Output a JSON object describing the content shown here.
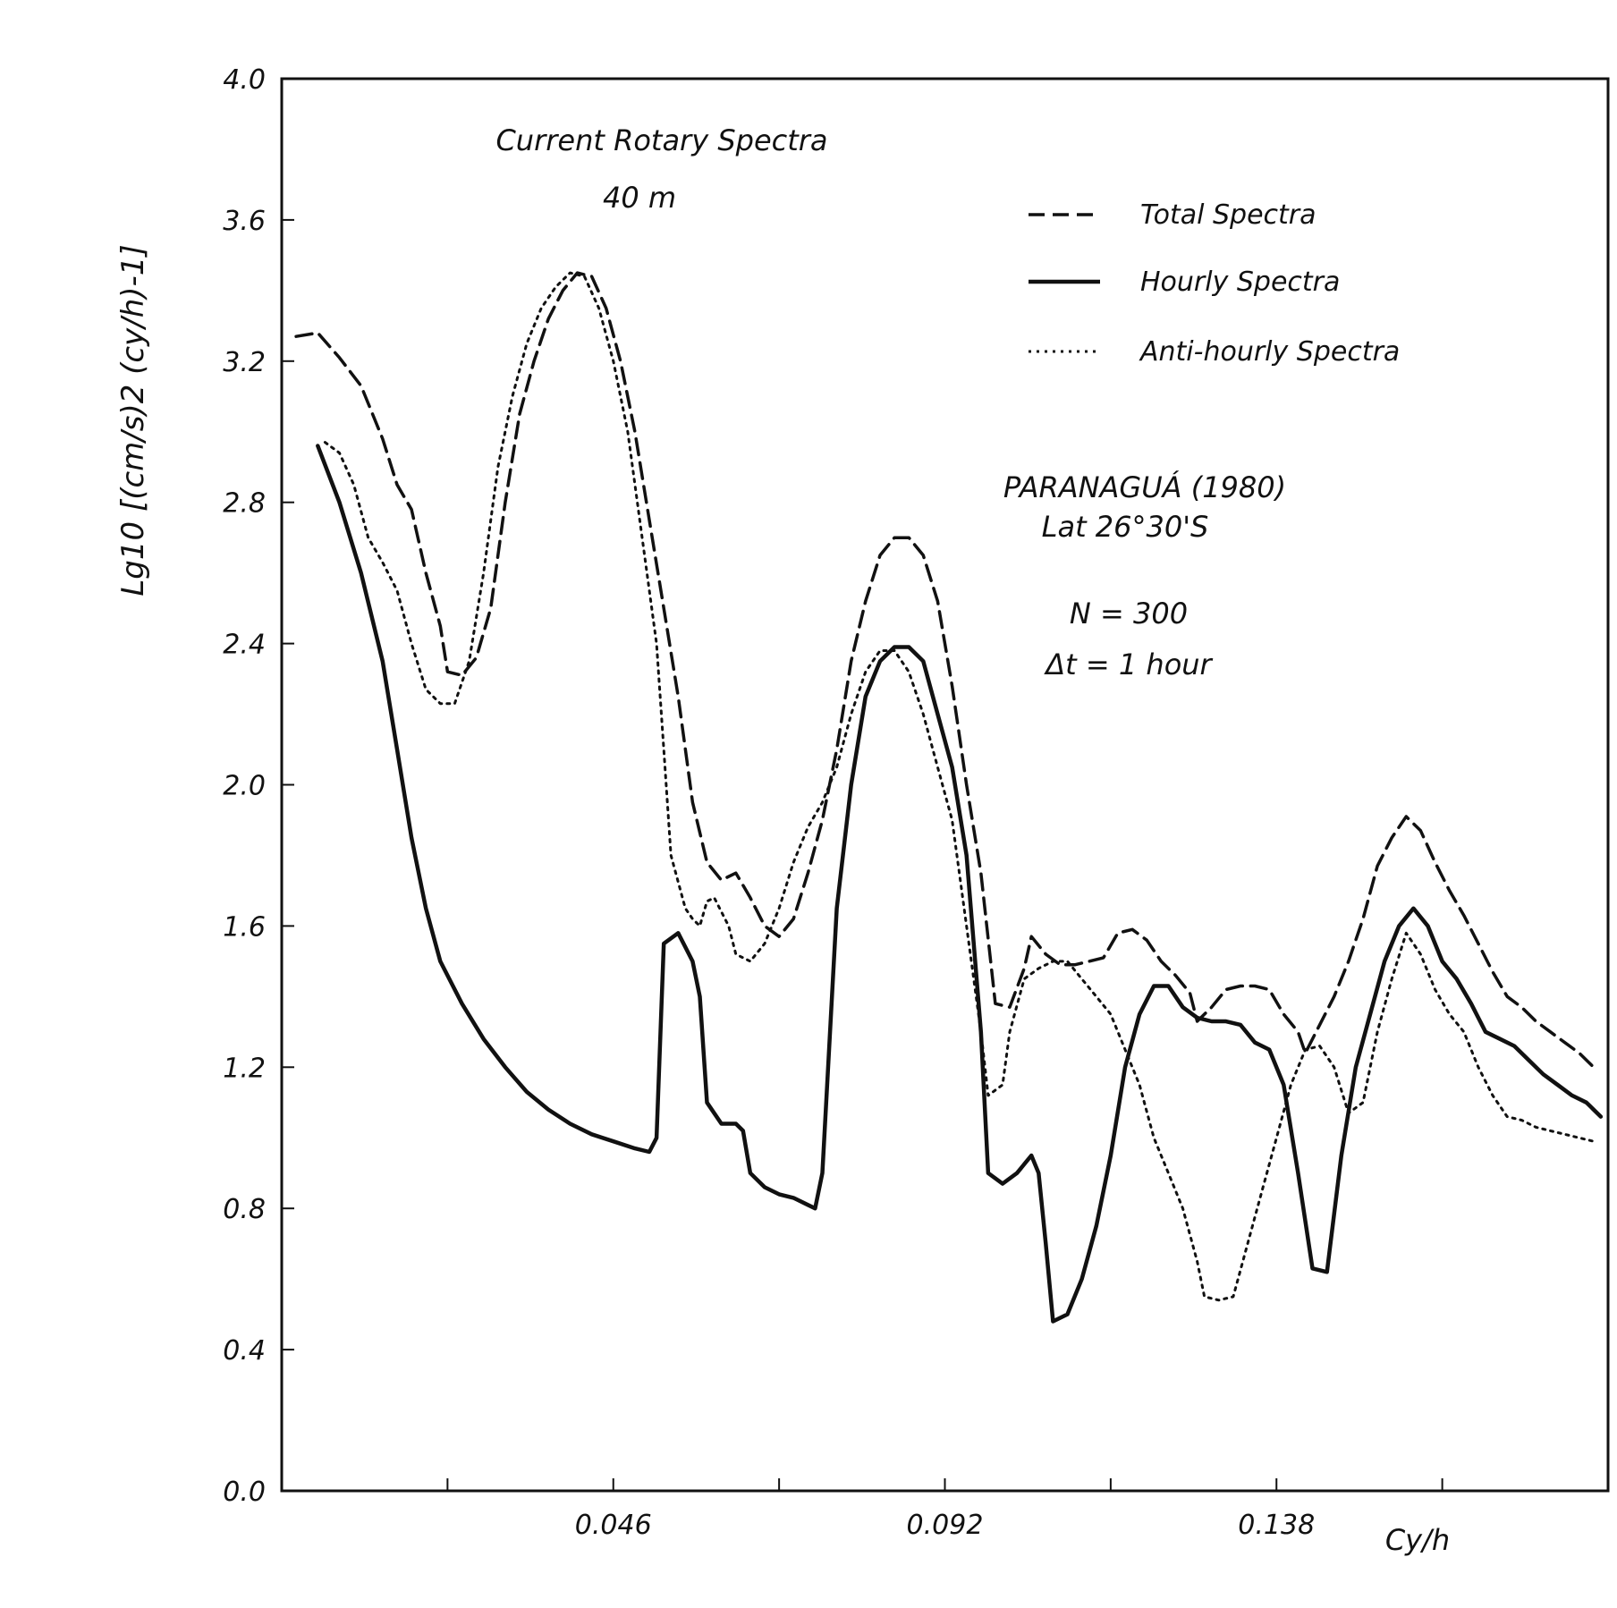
{
  "chart_data": {
    "type": "line",
    "title": "Current Rotary Spectra",
    "subtitle": "40 m",
    "xlabel": "Cy/h",
    "ylabel": "Lg10 [(cm/s)2 (cy/h)-1]",
    "xlim": [
      0.0,
      0.184
    ],
    "ylim": [
      0.0,
      4.0
    ],
    "x_ticks": [
      0.046,
      0.092,
      0.138
    ],
    "y_ticks": [
      "0.0",
      "0.4",
      "0.8",
      "1.2",
      "1.6",
      "2.0",
      "2.4",
      "2.8",
      "3.2",
      "3.6",
      "4.0"
    ],
    "grid": false,
    "legend_position": "top-right",
    "annotations": {
      "station": "PARANAGUÁ (1980)",
      "latitude": "Lat 26°30'S",
      "n": "N = 300",
      "dt": "Δt = 1 hour"
    },
    "series": [
      {
        "name": "Total Spectra",
        "style": "dashed",
        "points": [
          [
            0.002,
            3.27
          ],
          [
            0.005,
            3.28
          ],
          [
            0.008,
            3.21
          ],
          [
            0.011,
            3.13
          ],
          [
            0.014,
            2.98
          ],
          [
            0.016,
            2.85
          ],
          [
            0.018,
            2.78
          ],
          [
            0.02,
            2.6
          ],
          [
            0.022,
            2.45
          ],
          [
            0.023,
            2.32
          ],
          [
            0.025,
            2.31
          ],
          [
            0.027,
            2.36
          ],
          [
            0.029,
            2.5
          ],
          [
            0.031,
            2.8
          ],
          [
            0.033,
            3.05
          ],
          [
            0.035,
            3.2
          ],
          [
            0.037,
            3.32
          ],
          [
            0.039,
            3.4
          ],
          [
            0.041,
            3.45
          ],
          [
            0.043,
            3.44
          ],
          [
            0.045,
            3.35
          ],
          [
            0.047,
            3.2
          ],
          [
            0.049,
            3.0
          ],
          [
            0.051,
            2.75
          ],
          [
            0.053,
            2.5
          ],
          [
            0.055,
            2.25
          ],
          [
            0.057,
            1.95
          ],
          [
            0.059,
            1.78
          ],
          [
            0.061,
            1.73
          ],
          [
            0.063,
            1.75
          ],
          [
            0.065,
            1.68
          ],
          [
            0.067,
            1.6
          ],
          [
            0.069,
            1.57
          ],
          [
            0.071,
            1.62
          ],
          [
            0.073,
            1.75
          ],
          [
            0.075,
            1.9
          ],
          [
            0.077,
            2.1
          ],
          [
            0.079,
            2.35
          ],
          [
            0.081,
            2.52
          ],
          [
            0.083,
            2.65
          ],
          [
            0.085,
            2.7
          ],
          [
            0.087,
            2.7
          ],
          [
            0.089,
            2.65
          ],
          [
            0.091,
            2.52
          ],
          [
            0.093,
            2.28
          ],
          [
            0.095,
            2.0
          ],
          [
            0.097,
            1.75
          ],
          [
            0.099,
            1.38
          ],
          [
            0.101,
            1.37
          ],
          [
            0.103,
            1.48
          ],
          [
            0.104,
            1.57
          ],
          [
            0.106,
            1.52
          ],
          [
            0.108,
            1.49
          ],
          [
            0.11,
            1.49
          ],
          [
            0.112,
            1.5
          ],
          [
            0.114,
            1.51
          ],
          [
            0.116,
            1.58
          ],
          [
            0.118,
            1.59
          ],
          [
            0.12,
            1.56
          ],
          [
            0.122,
            1.5
          ],
          [
            0.124,
            1.46
          ],
          [
            0.126,
            1.41
          ],
          [
            0.127,
            1.33
          ],
          [
            0.129,
            1.37
          ],
          [
            0.131,
            1.42
          ],
          [
            0.133,
            1.43
          ],
          [
            0.135,
            1.43
          ],
          [
            0.137,
            1.42
          ],
          [
            0.139,
            1.35
          ],
          [
            0.141,
            1.3
          ],
          [
            0.142,
            1.24
          ],
          [
            0.144,
            1.32
          ],
          [
            0.146,
            1.4
          ],
          [
            0.148,
            1.5
          ],
          [
            0.15,
            1.62
          ],
          [
            0.152,
            1.77
          ],
          [
            0.154,
            1.85
          ],
          [
            0.156,
            1.91
          ],
          [
            0.158,
            1.87
          ],
          [
            0.16,
            1.78
          ],
          [
            0.162,
            1.7
          ],
          [
            0.164,
            1.63
          ],
          [
            0.166,
            1.55
          ],
          [
            0.168,
            1.47
          ],
          [
            0.17,
            1.4
          ],
          [
            0.172,
            1.37
          ],
          [
            0.174,
            1.33
          ],
          [
            0.176,
            1.3
          ],
          [
            0.178,
            1.27
          ],
          [
            0.18,
            1.24
          ],
          [
            0.182,
            1.2
          ]
        ]
      },
      {
        "name": "Hourly Spectra",
        "style": "solid",
        "points": [
          [
            0.005,
            2.96
          ],
          [
            0.008,
            2.8
          ],
          [
            0.011,
            2.6
          ],
          [
            0.014,
            2.35
          ],
          [
            0.016,
            2.1
          ],
          [
            0.018,
            1.85
          ],
          [
            0.02,
            1.65
          ],
          [
            0.022,
            1.5
          ],
          [
            0.025,
            1.38
          ],
          [
            0.028,
            1.28
          ],
          [
            0.031,
            1.2
          ],
          [
            0.034,
            1.13
          ],
          [
            0.037,
            1.08
          ],
          [
            0.04,
            1.04
          ],
          [
            0.043,
            1.01
          ],
          [
            0.046,
            0.99
          ],
          [
            0.049,
            0.97
          ],
          [
            0.051,
            0.96
          ],
          [
            0.052,
            1.0
          ],
          [
            0.053,
            1.55
          ],
          [
            0.055,
            1.58
          ],
          [
            0.057,
            1.5
          ],
          [
            0.058,
            1.4
          ],
          [
            0.059,
            1.1
          ],
          [
            0.061,
            1.04
          ],
          [
            0.063,
            1.04
          ],
          [
            0.064,
            1.02
          ],
          [
            0.065,
            0.9
          ],
          [
            0.067,
            0.86
          ],
          [
            0.069,
            0.84
          ],
          [
            0.071,
            0.83
          ],
          [
            0.073,
            0.81
          ],
          [
            0.074,
            0.8
          ],
          [
            0.075,
            0.9
          ],
          [
            0.077,
            1.65
          ],
          [
            0.079,
            2.0
          ],
          [
            0.081,
            2.25
          ],
          [
            0.083,
            2.35
          ],
          [
            0.085,
            2.39
          ],
          [
            0.087,
            2.39
          ],
          [
            0.089,
            2.35
          ],
          [
            0.091,
            2.2
          ],
          [
            0.093,
            2.05
          ],
          [
            0.095,
            1.8
          ],
          [
            0.097,
            1.3
          ],
          [
            0.098,
            0.9
          ],
          [
            0.1,
            0.87
          ],
          [
            0.102,
            0.9
          ],
          [
            0.104,
            0.95
          ],
          [
            0.105,
            0.9
          ],
          [
            0.106,
            0.7
          ],
          [
            0.107,
            0.48
          ],
          [
            0.109,
            0.5
          ],
          [
            0.111,
            0.6
          ],
          [
            0.113,
            0.75
          ],
          [
            0.115,
            0.95
          ],
          [
            0.117,
            1.2
          ],
          [
            0.119,
            1.35
          ],
          [
            0.121,
            1.43
          ],
          [
            0.123,
            1.43
          ],
          [
            0.125,
            1.37
          ],
          [
            0.127,
            1.34
          ],
          [
            0.129,
            1.33
          ],
          [
            0.131,
            1.33
          ],
          [
            0.133,
            1.32
          ],
          [
            0.135,
            1.27
          ],
          [
            0.137,
            1.25
          ],
          [
            0.139,
            1.15
          ],
          [
            0.141,
            0.9
          ],
          [
            0.143,
            0.63
          ],
          [
            0.145,
            0.62
          ],
          [
            0.147,
            0.95
          ],
          [
            0.149,
            1.2
          ],
          [
            0.151,
            1.35
          ],
          [
            0.153,
            1.5
          ],
          [
            0.155,
            1.6
          ],
          [
            0.157,
            1.65
          ],
          [
            0.159,
            1.6
          ],
          [
            0.161,
            1.5
          ],
          [
            0.163,
            1.45
          ],
          [
            0.165,
            1.38
          ],
          [
            0.167,
            1.3
          ],
          [
            0.169,
            1.28
          ],
          [
            0.171,
            1.26
          ],
          [
            0.173,
            1.22
          ],
          [
            0.175,
            1.18
          ],
          [
            0.177,
            1.15
          ],
          [
            0.179,
            1.12
          ],
          [
            0.181,
            1.1
          ],
          [
            0.183,
            1.06
          ]
        ]
      },
      {
        "name": "Anti-hourly Spectra",
        "style": "dotted",
        "points": [
          [
            0.006,
            2.97
          ],
          [
            0.008,
            2.94
          ],
          [
            0.01,
            2.85
          ],
          [
            0.012,
            2.7
          ],
          [
            0.014,
            2.63
          ],
          [
            0.016,
            2.55
          ],
          [
            0.018,
            2.4
          ],
          [
            0.02,
            2.27
          ],
          [
            0.022,
            2.23
          ],
          [
            0.024,
            2.23
          ],
          [
            0.026,
            2.35
          ],
          [
            0.028,
            2.6
          ],
          [
            0.03,
            2.9
          ],
          [
            0.032,
            3.1
          ],
          [
            0.034,
            3.25
          ],
          [
            0.036,
            3.35
          ],
          [
            0.038,
            3.41
          ],
          [
            0.04,
            3.45
          ],
          [
            0.042,
            3.44
          ],
          [
            0.044,
            3.35
          ],
          [
            0.046,
            3.2
          ],
          [
            0.048,
            3.0
          ],
          [
            0.05,
            2.7
          ],
          [
            0.052,
            2.4
          ],
          [
            0.053,
            2.1
          ],
          [
            0.054,
            1.8
          ],
          [
            0.056,
            1.65
          ],
          [
            0.057,
            1.62
          ],
          [
            0.058,
            1.6
          ],
          [
            0.059,
            1.67
          ],
          [
            0.06,
            1.68
          ],
          [
            0.062,
            1.6
          ],
          [
            0.063,
            1.52
          ],
          [
            0.065,
            1.5
          ],
          [
            0.067,
            1.55
          ],
          [
            0.069,
            1.65
          ],
          [
            0.071,
            1.78
          ],
          [
            0.073,
            1.88
          ],
          [
            0.075,
            1.95
          ],
          [
            0.077,
            2.05
          ],
          [
            0.079,
            2.2
          ],
          [
            0.081,
            2.32
          ],
          [
            0.083,
            2.38
          ],
          [
            0.085,
            2.38
          ],
          [
            0.087,
            2.32
          ],
          [
            0.089,
            2.2
          ],
          [
            0.091,
            2.05
          ],
          [
            0.093,
            1.9
          ],
          [
            0.095,
            1.6
          ],
          [
            0.097,
            1.3
          ],
          [
            0.098,
            1.12
          ],
          [
            0.1,
            1.15
          ],
          [
            0.101,
            1.3
          ],
          [
            0.103,
            1.45
          ],
          [
            0.105,
            1.48
          ],
          [
            0.107,
            1.5
          ],
          [
            0.109,
            1.5
          ],
          [
            0.111,
            1.45
          ],
          [
            0.113,
            1.4
          ],
          [
            0.115,
            1.35
          ],
          [
            0.117,
            1.25
          ],
          [
            0.119,
            1.15
          ],
          [
            0.121,
            1.0
          ],
          [
            0.123,
            0.9
          ],
          [
            0.125,
            0.8
          ],
          [
            0.127,
            0.65
          ],
          [
            0.128,
            0.55
          ],
          [
            0.13,
            0.54
          ],
          [
            0.132,
            0.55
          ],
          [
            0.134,
            0.7
          ],
          [
            0.136,
            0.85
          ],
          [
            0.138,
            1.0
          ],
          [
            0.14,
            1.15
          ],
          [
            0.142,
            1.25
          ],
          [
            0.144,
            1.26
          ],
          [
            0.146,
            1.2
          ],
          [
            0.148,
            1.07
          ],
          [
            0.15,
            1.1
          ],
          [
            0.152,
            1.3
          ],
          [
            0.154,
            1.45
          ],
          [
            0.156,
            1.58
          ],
          [
            0.158,
            1.52
          ],
          [
            0.16,
            1.42
          ],
          [
            0.162,
            1.35
          ],
          [
            0.164,
            1.3
          ],
          [
            0.166,
            1.2
          ],
          [
            0.168,
            1.12
          ],
          [
            0.17,
            1.06
          ],
          [
            0.172,
            1.05
          ],
          [
            0.174,
            1.03
          ],
          [
            0.176,
            1.02
          ],
          [
            0.178,
            1.01
          ],
          [
            0.18,
            1.0
          ],
          [
            0.182,
            0.99
          ]
        ]
      }
    ]
  }
}
